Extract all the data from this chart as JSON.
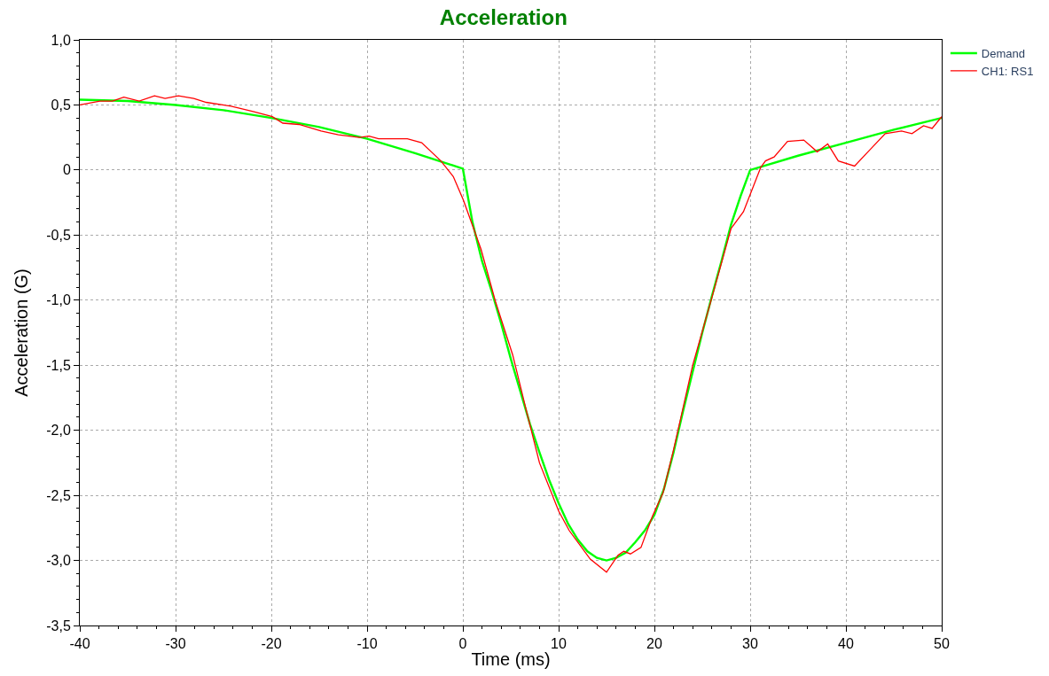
{
  "chart_data": {
    "type": "line",
    "title": "Acceleration",
    "xlabel": "Time (ms)",
    "ylabel": "Acceleration (G)",
    "xlim": [
      -40,
      50
    ],
    "xticks": [
      -40,
      -30,
      -20,
      -10,
      0,
      10,
      20,
      30,
      40,
      50
    ],
    "ylim": [
      -3.5,
      1.0
    ],
    "yticks": [
      {
        "value": -3.5,
        "label": "-3,5"
      },
      {
        "value": -3.0,
        "label": "-3,0"
      },
      {
        "value": -2.5,
        "label": "-2,5"
      },
      {
        "value": -2.0,
        "label": "-2,0"
      },
      {
        "value": -1.5,
        "label": "-1,5"
      },
      {
        "value": -1.0,
        "label": "-1,0"
      },
      {
        "value": -0.5,
        "label": "-0,5"
      },
      {
        "value": 0,
        "label": "0"
      },
      {
        "value": 0.5,
        "label": "0,5"
      },
      {
        "value": 1.0,
        "label": "1,0"
      }
    ],
    "grid": true,
    "legend": "top right",
    "marker": "none",
    "line_style": "solid",
    "series": [
      {
        "name": "Demand",
        "color": "#00ff00",
        "x": [
          -40,
          -35,
          -30,
          -25,
          -20,
          -15,
          -10,
          -5,
          0,
          1,
          2,
          3,
          4,
          5,
          6,
          7,
          8,
          9,
          10,
          11,
          12,
          13,
          14,
          15,
          16,
          17,
          18,
          19,
          20,
          21,
          22,
          23,
          24,
          25,
          26,
          27,
          28,
          29,
          30,
          35,
          40,
          45,
          50
        ],
        "values": [
          0.54,
          0.53,
          0.5,
          0.46,
          0.4,
          0.33,
          0.24,
          0.13,
          0.01,
          -0.4,
          -0.7,
          -0.93,
          -1.18,
          -1.45,
          -1.7,
          -1.95,
          -2.17,
          -2.38,
          -2.56,
          -2.72,
          -2.84,
          -2.93,
          -2.98,
          -3.0,
          -2.98,
          -2.94,
          -2.86,
          -2.77,
          -2.65,
          -2.45,
          -2.17,
          -1.85,
          -1.55,
          -1.25,
          -0.97,
          -0.7,
          -0.42,
          -0.2,
          0.0,
          0.11,
          0.21,
          0.31,
          0.4
        ]
      },
      {
        "name": "CH1: RS1",
        "color": "#ff0000",
        "x": [
          -40,
          -37.9,
          -36.6,
          -35.4,
          -33.8,
          -32.2,
          -31.1,
          -29.7,
          -28.1,
          -26.8,
          -24.2,
          -21.9,
          -19.9,
          -18.8,
          -17.1,
          -14.8,
          -13.0,
          -10.8,
          -9.8,
          -8.8,
          -5.8,
          -4.3,
          -2.3,
          -1.0,
          0.05,
          1.9,
          3.4,
          5.2,
          6.7,
          8,
          10,
          11.1,
          13.3,
          15.0,
          16.2,
          16.8,
          17.5,
          18.6,
          19.8,
          20.9,
          22,
          24,
          26,
          28,
          29.3,
          31.1,
          31.6,
          32.5,
          33.9,
          35.6,
          37.0,
          38.1,
          39.2,
          40.9,
          42.3,
          44.1,
          45.8,
          46.9,
          48.1,
          49.0,
          50
        ],
        "values": [
          0.5,
          0.53,
          0.53,
          0.56,
          0.53,
          0.57,
          0.55,
          0.57,
          0.55,
          0.52,
          0.49,
          0.45,
          0.41,
          0.36,
          0.35,
          0.3,
          0.27,
          0.25,
          0.26,
          0.24,
          0.24,
          0.21,
          0.07,
          -0.05,
          -0.23,
          -0.61,
          -1.01,
          -1.42,
          -1.87,
          -2.25,
          -2.62,
          -2.77,
          -2.99,
          -3.09,
          -2.96,
          -2.93,
          -2.95,
          -2.9,
          -2.66,
          -2.48,
          -2.15,
          -1.5,
          -0.98,
          -0.45,
          -0.32,
          0.02,
          0.07,
          0.1,
          0.22,
          0.23,
          0.14,
          0.2,
          0.07,
          0.03,
          0.14,
          0.28,
          0.3,
          0.28,
          0.34,
          0.32,
          0.41
        ]
      }
    ]
  }
}
